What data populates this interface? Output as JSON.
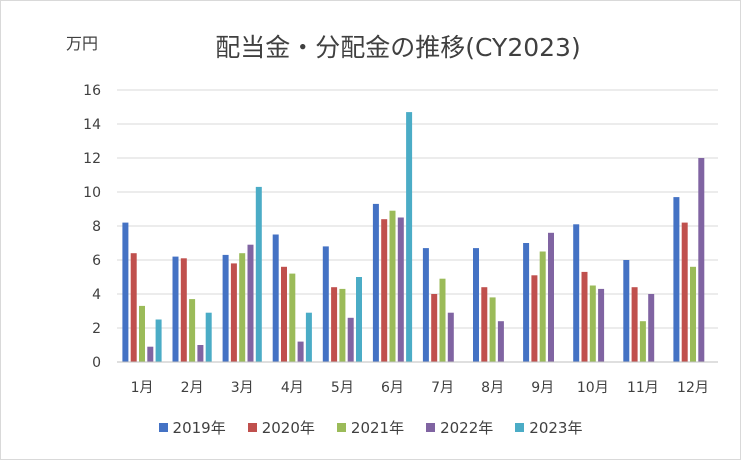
{
  "chart_data": {
    "type": "bar",
    "title": "配当金・分配金の推移(CY2023)",
    "unit_label": "万円",
    "categories": [
      "1月",
      "2月",
      "3月",
      "4月",
      "5月",
      "6月",
      "7月",
      "8月",
      "9月",
      "10月",
      "11月",
      "12月"
    ],
    "ylim": [
      0,
      16
    ],
    "yticks": [
      "0",
      "2",
      "4",
      "6",
      "8",
      "10",
      "12",
      "14",
      "16"
    ],
    "grid": true,
    "legend_position": "bottom",
    "series": [
      {
        "name": "2019年",
        "color": "#4472C4",
        "values": [
          8.2,
          6.2,
          6.3,
          7.5,
          6.8,
          9.3,
          6.7,
          6.7,
          7.0,
          8.1,
          6.0,
          9.7
        ]
      },
      {
        "name": "2020年",
        "color": "#C0504D",
        "values": [
          6.4,
          6.1,
          5.8,
          5.6,
          4.4,
          8.4,
          4.0,
          4.4,
          5.1,
          5.3,
          4.4,
          8.2
        ]
      },
      {
        "name": "2021年",
        "color": "#9BBB59",
        "values": [
          3.3,
          3.7,
          6.4,
          5.2,
          4.3,
          8.9,
          4.9,
          3.8,
          6.5,
          4.5,
          2.4,
          5.6
        ]
      },
      {
        "name": "2022年",
        "color": "#8064A2",
        "values": [
          0.9,
          1.0,
          6.9,
          1.2,
          2.6,
          8.5,
          2.9,
          2.4,
          7.6,
          4.3,
          4.0,
          12.0
        ]
      },
      {
        "name": "2023年",
        "color": "#4BACC6",
        "values": [
          2.5,
          2.9,
          10.3,
          2.9,
          5.0,
          14.7,
          null,
          null,
          null,
          null,
          null,
          null
        ]
      }
    ]
  }
}
